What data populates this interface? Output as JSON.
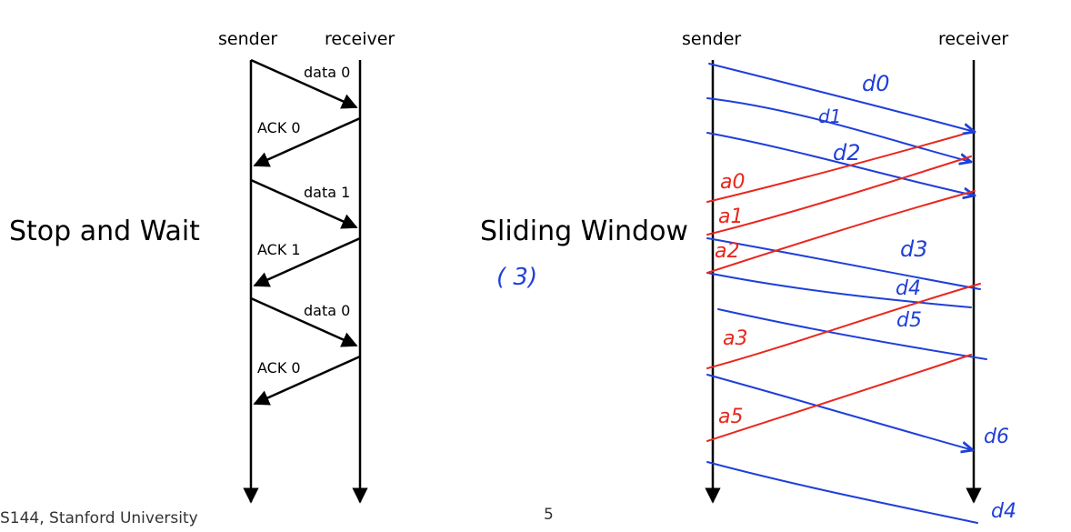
{
  "stop_and_wait": {
    "sender_label": "sender",
    "receiver_label": "receiver",
    "title": "Stop and Wait",
    "messages": [
      "data 0",
      "ACK 0",
      "data 1",
      "ACK 1",
      "data 0",
      "ACK 0"
    ]
  },
  "sliding_window": {
    "sender_label": "sender",
    "receiver_label": "receiver",
    "title": "Sliding Window",
    "window_note": "( 3)",
    "blue_labels": [
      "d0",
      "d1",
      "d2",
      "d3",
      "d4",
      "d5",
      "d6",
      "d4"
    ],
    "red_labels": [
      "a0",
      "a1",
      "a2",
      "a3",
      "a5"
    ],
    "colors": {
      "blue": "#1f3fd9",
      "red": "#e8281e"
    }
  },
  "footer": {
    "course": "S144, Stanford University",
    "page_number": "5"
  }
}
